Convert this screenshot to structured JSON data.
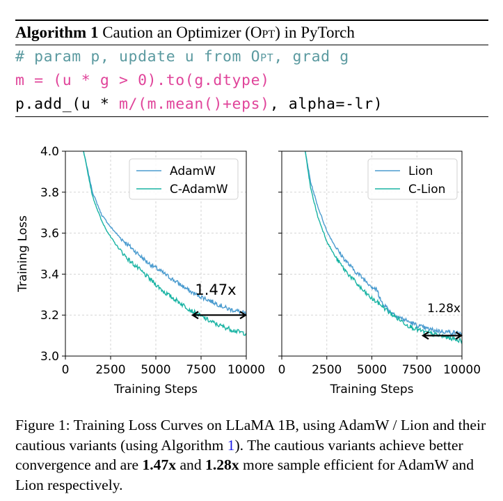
{
  "algorithm": {
    "label": "Algorithm 1",
    "title_pre": "Caution an Optimizer (",
    "title_sc": "Opt",
    "title_post": ") in PyTorch",
    "code": {
      "line1_pre": "# param p, update u from ",
      "line1_sc": "Opt",
      "line1_post": ", grad g",
      "line2": "m = (u * g > 0).to(g.dtype)",
      "line3_black1": "p.add_(u * ",
      "line3_pink": "m/(m.mean()+eps)",
      "line3_black2": ", alpha=-lr)"
    }
  },
  "chart_data": [
    {
      "type": "line",
      "xlabel": "Training Steps",
      "ylabel": "Training Loss",
      "xlim": [
        0,
        10000
      ],
      "ylim": [
        3.0,
        4.0
      ],
      "x_ticks": [
        "0",
        "2500",
        "5000",
        "7500",
        "10000"
      ],
      "y_ticks": [
        "3.0",
        "3.2",
        "3.4",
        "3.6",
        "3.8",
        "4.0"
      ],
      "grid": true,
      "legend_position": "top-right",
      "annotation": "1.47x",
      "arrow_x": [
        7000,
        10000
      ],
      "arrow_y": 3.2,
      "series": [
        {
          "name": "AdamW",
          "color": "#4a9bcf",
          "x": [
            1000,
            1500,
            2000,
            2500,
            3000,
            3500,
            4000,
            4500,
            5000,
            5500,
            6000,
            6500,
            7000,
            7500,
            8000,
            8500,
            9000,
            9500,
            10000
          ],
          "y": [
            4.0,
            3.8,
            3.69,
            3.63,
            3.58,
            3.54,
            3.5,
            3.46,
            3.43,
            3.4,
            3.37,
            3.34,
            3.31,
            3.29,
            3.27,
            3.25,
            3.23,
            3.22,
            3.205
          ]
        },
        {
          "name": "C-AdamW",
          "color": "#18b3a3",
          "x": [
            1000,
            1500,
            2000,
            2500,
            3000,
            3500,
            4000,
            4500,
            5000,
            5500,
            6000,
            6500,
            7000,
            7500,
            8000,
            8500,
            9000,
            9500,
            10000
          ],
          "y": [
            4.0,
            3.78,
            3.66,
            3.58,
            3.52,
            3.47,
            3.43,
            3.39,
            3.35,
            3.31,
            3.28,
            3.25,
            3.22,
            3.195,
            3.17,
            3.15,
            3.135,
            3.12,
            3.11
          ]
        }
      ]
    },
    {
      "type": "line",
      "xlabel": "Training Steps",
      "ylabel": "",
      "xlim": [
        0,
        10000
      ],
      "ylim": [
        3.0,
        4.0
      ],
      "x_ticks": [
        "0",
        "2500",
        "5000",
        "7500",
        "10000"
      ],
      "y_ticks": [],
      "grid": true,
      "legend_position": "top-right",
      "annotation": "1.28x",
      "arrow_x": [
        7800,
        10000
      ],
      "arrow_y": 3.1,
      "series": [
        {
          "name": "Lion",
          "color": "#4a9bcf",
          "x": [
            1300,
            1600,
            2000,
            2500,
            3000,
            3500,
            4000,
            4500,
            5000,
            5300,
            5500,
            6000,
            6500,
            7000,
            7500,
            8000,
            8500,
            9000,
            9500,
            10000
          ],
          "y": [
            4.0,
            3.85,
            3.73,
            3.61,
            3.53,
            3.47,
            3.42,
            3.38,
            3.34,
            3.32,
            3.27,
            3.22,
            3.19,
            3.17,
            3.15,
            3.135,
            3.125,
            3.12,
            3.115,
            3.11
          ]
        },
        {
          "name": "C-Lion",
          "color": "#18b3a3",
          "x": [
            1300,
            1600,
            2000,
            2500,
            3000,
            3500,
            4000,
            4500,
            5000,
            5500,
            6000,
            6500,
            7000,
            7500,
            8000,
            8500,
            9000,
            9500,
            10000
          ],
          "y": [
            4.0,
            3.82,
            3.68,
            3.56,
            3.48,
            3.42,
            3.37,
            3.32,
            3.28,
            3.25,
            3.21,
            3.18,
            3.15,
            3.13,
            3.115,
            3.105,
            3.095,
            3.085,
            3.075
          ]
        }
      ]
    }
  ],
  "caption": {
    "label": "Figure 1:",
    "text1": " Training Loss Curves on LLaMA 1B, using AdamW / Lion and their cautious variants (using Algorithm ",
    "ref": "1",
    "text2": "). The cautious variants achieve better convergence and are ",
    "bold1": "1.47x",
    "text3": " and ",
    "bold2": "1.28x",
    "text4": " more sample efficient for AdamW and Lion respectively."
  }
}
